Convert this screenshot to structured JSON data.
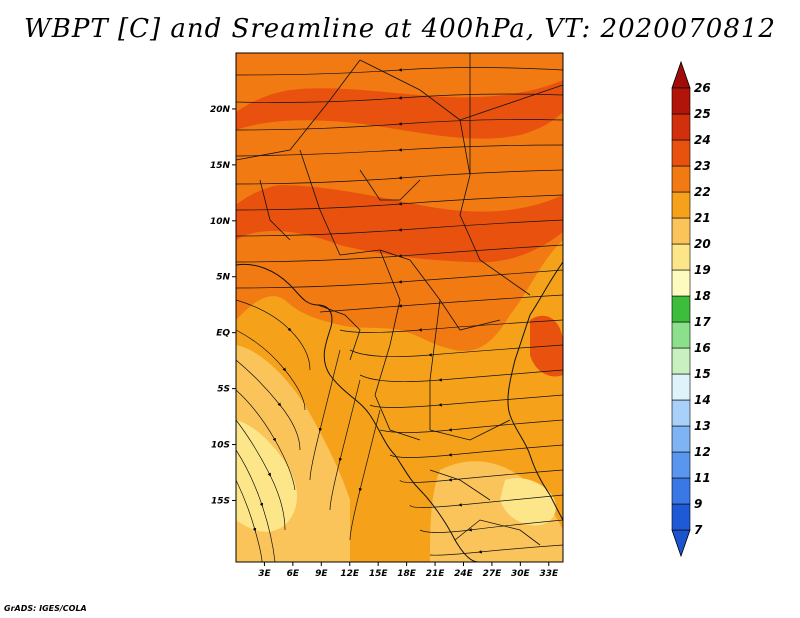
{
  "title": "WBPT [C] and Sreamline at 400hPa, VT: 2020070812",
  "footer": "GrADS: IGES/COLA",
  "map": {
    "lon_range": [
      0,
      34.5
    ],
    "lat_range": [
      -20.5,
      25
    ],
    "lat_ticks": [
      {
        "value": 20,
        "label": "20N"
      },
      {
        "value": 15,
        "label": "15N"
      },
      {
        "value": 10,
        "label": "10N"
      },
      {
        "value": 5,
        "label": "5N"
      },
      {
        "value": 0,
        "label": "EQ"
      },
      {
        "value": -5,
        "label": "5S"
      },
      {
        "value": -10,
        "label": "10S"
      },
      {
        "value": -15,
        "label": "15S"
      }
    ],
    "lon_ticks": [
      {
        "value": 3,
        "label": "3E"
      },
      {
        "value": 6,
        "label": "6E"
      },
      {
        "value": 9,
        "label": "9E"
      },
      {
        "value": 12,
        "label": "12E"
      },
      {
        "value": 15,
        "label": "15E"
      },
      {
        "value": 18,
        "label": "18E"
      },
      {
        "value": 21,
        "label": "21E"
      },
      {
        "value": 24,
        "label": "24E"
      },
      {
        "value": 27,
        "label": "27E"
      },
      {
        "value": 30,
        "label": "30E"
      },
      {
        "value": 33,
        "label": "33E"
      }
    ]
  },
  "colorbar": {
    "labels": [
      "7",
      "9",
      "11",
      "12",
      "13",
      "14",
      "15",
      "16",
      "17",
      "18",
      "19",
      "20",
      "21",
      "22",
      "23",
      "24",
      "25",
      "26"
    ],
    "colors": [
      "#1e5ad6",
      "#3a78e6",
      "#5a96ee",
      "#7fb4f4",
      "#a8d0f8",
      "#dff3fb",
      "#c8f0c0",
      "#8ce08c",
      "#3cbe3c",
      "#fdfbc0",
      "#fde68a",
      "#fbc45a",
      "#f5a21a",
      "#f27a12",
      "#e8520e",
      "#d2300c",
      "#b0140a"
    ],
    "cap_low": "#1c54d0",
    "cap_high": "#a00c08"
  }
}
